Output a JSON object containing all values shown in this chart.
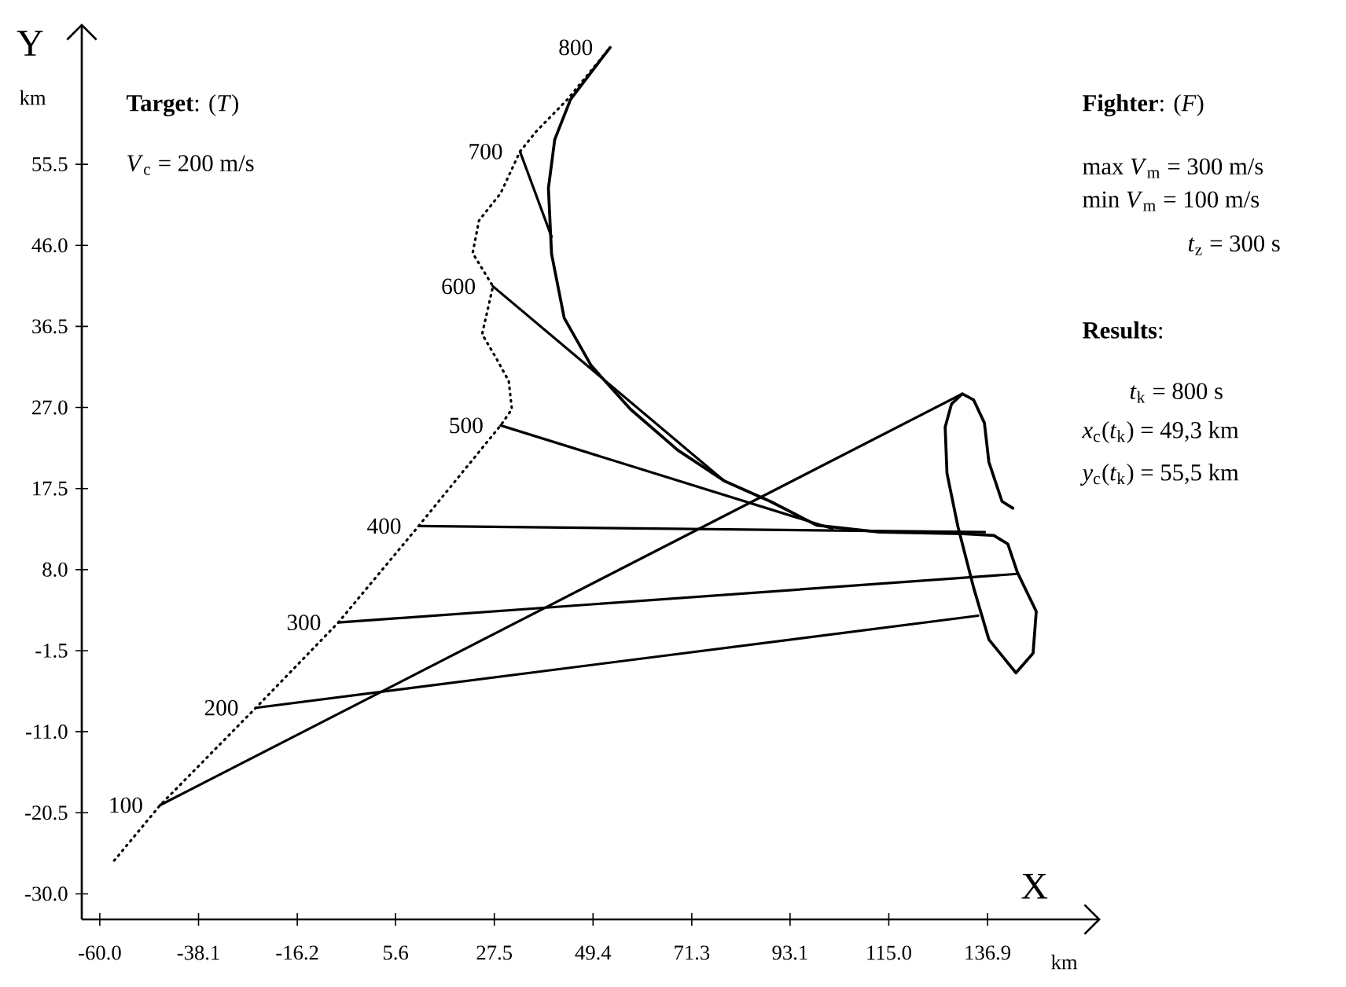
{
  "chart_data": {
    "type": "line",
    "xlabel": "X",
    "ylabel": "Y",
    "xlim": [
      -64,
      162
    ],
    "ylim": [
      -33,
      72
    ],
    "xticks": [
      {
        "value": -60,
        "label": "-60.0"
      },
      -38.1,
      -16.2,
      5.6,
      27.5,
      49.4,
      71.3,
      93.1,
      {
        "value": 115,
        "label": "115.0"
      },
      136.9
    ],
    "yticks": [
      {
        "value": -30,
        "label": "-30.0"
      },
      -20.5,
      {
        "value": -11,
        "label": "-11.0"
      },
      -1.5,
      {
        "value": 8,
        "label": "8.0"
      },
      17.5,
      {
        "value": 27,
        "label": "27.0"
      },
      36.5,
      {
        "value": 46,
        "label": "46.0"
      },
      55.5
    ],
    "line_style": "solid",
    "series": [
      {
        "color": "#000000",
        "line_style": "dotted",
        "x": [
          -56.8,
          -46.6,
          -25.4,
          -7.1,
          10.7,
          28.9,
          31.4,
          30.7,
          27.9,
          24.8,
          27.2,
          22.7,
          24.1,
          28.9,
          33.2,
          36.7,
          43.7,
          53.2
        ],
        "values": [
          -26.1,
          -19.6,
          -8.2,
          1.8,
          13.1,
          24.9,
          26.8,
          30.1,
          32.8,
          35.6,
          41.2,
          45.1,
          48.9,
          52.1,
          57.0,
          59.3,
          63.1,
          69.2
        ]
      },
      {
        "color": "#000000",
        "x": [
          142.5,
          140.1,
          137.2,
          136.2,
          133.8,
          131.3,
          128.9,
          127.5,
          127.9,
          130.3,
          133.8,
          137.2,
          143.2,
          147.0,
          147.7,
          143.5,
          141.4,
          138.3,
          131.3,
          112.9,
          99.0,
          88.7,
          78.5,
          68.2,
          57.7,
          49.0,
          43.0,
          40.2,
          39.5,
          40.9,
          44.4,
          49.0,
          53.2
        ],
        "values": [
          15.2,
          16.0,
          20.6,
          25.2,
          27.9,
          28.6,
          27.4,
          24.7,
          19.3,
          13.1,
          5.9,
          -0.2,
          -4.1,
          -1.8,
          3.1,
          7.7,
          11.0,
          12.0,
          12.2,
          12.4,
          13.2,
          16.0,
          18.4,
          22.0,
          26.8,
          31.9,
          37.5,
          45.0,
          52.7,
          58.4,
          63.1,
          66.3,
          69.2
        ]
      },
      {
        "color": "#000000",
        "x": [
          -46.6,
          131.3
        ],
        "values": [
          -19.6,
          28.6
        ]
      },
      {
        "color": "#000000",
        "x": [
          -25.4,
          134.8
        ],
        "values": [
          -8.2,
          2.6
        ]
      },
      {
        "color": "#000000",
        "x": [
          -7.1,
          143.5
        ],
        "values": [
          1.8,
          7.5
        ]
      },
      {
        "color": "#000000",
        "x": [
          10.7,
          136.3
        ],
        "values": [
          13.1,
          12.4
        ]
      },
      {
        "color": "#000000",
        "x": [
          28.9,
          102.5
        ],
        "values": [
          24.9,
          12.8
        ]
      },
      {
        "color": "#000000",
        "x": [
          27.2,
          78.5
        ],
        "values": [
          41.2,
          18.4
        ]
      },
      {
        "color": "#000000",
        "x": [
          33.2,
          40.2
        ],
        "values": [
          57.0,
          47.0
        ]
      }
    ],
    "annotations": [
      "**Target**: (*T*)",
      "*V*$_{c}$ = 200 m/s",
      "**Fighter**: (*F*)",
      "max *V*$_{m}$ = 300 m/s",
      "min *V*$_{m}$ = 100 m/s",
      "*t*$_{z}$ = 300 s",
      "**Results**:",
      "*t*$_{k}$ = 800 s",
      "*x*$_{c}$(*t*$_{k}$) = 49,3 km",
      "*y*$_{c}$(*t*$_{k}$) = 55,5 km",
      "km",
      "km",
      {
        "text": "100",
        "x": -46.6,
        "y": -19.6
      },
      {
        "text": "200",
        "x": -25.4,
        "y": -8.2
      },
      {
        "text": "300",
        "x": -7.1,
        "y": 1.8
      },
      {
        "text": "400",
        "x": 10.7,
        "y": 13.1
      },
      {
        "text": "500",
        "x": 28.9,
        "y": 24.9
      },
      {
        "text": "600",
        "x": 27.2,
        "y": 41.2
      },
      {
        "text": "700",
        "x": 33.2,
        "y": 57.0
      },
      {
        "text": "800",
        "x": 53.2,
        "y": 69.2
      }
    ]
  }
}
